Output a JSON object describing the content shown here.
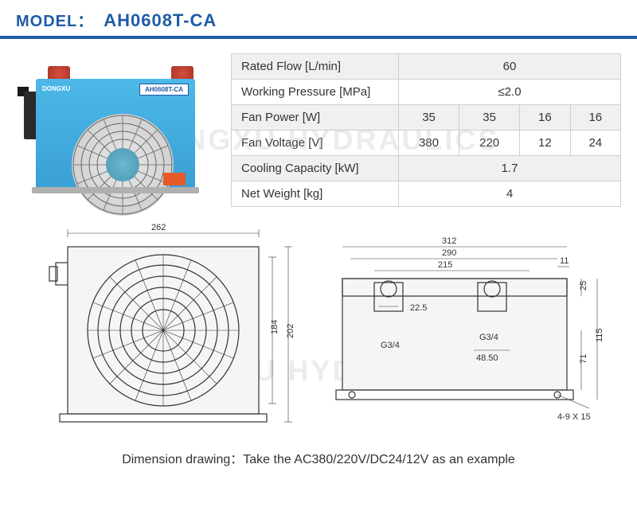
{
  "header": {
    "label": "MODEL：",
    "model": "AH0608T-CA"
  },
  "product": {
    "label": "AH0608T-CA",
    "brand": "DONGXU"
  },
  "specs": {
    "rows": [
      {
        "label": "Rated Flow [L/min]",
        "values": [
          "60"
        ],
        "colspan": 4
      },
      {
        "label": "Working Pressure [MPa]",
        "values": [
          "≤2.0"
        ],
        "colspan": 4
      },
      {
        "label": "Fan Power [W]",
        "values": [
          "35",
          "35",
          "16",
          "16"
        ],
        "colspan": 1
      },
      {
        "label": "Fan Voltage [V]",
        "values": [
          "380",
          "220",
          "12",
          "24"
        ],
        "colspan": 1
      },
      {
        "label": "Cooling Capacity [kW]",
        "values": [
          "1.7"
        ],
        "colspan": 4
      },
      {
        "label": "Net Weight [kg]",
        "values": [
          "4"
        ],
        "colspan": 4
      }
    ]
  },
  "drawings": {
    "front": {
      "width": "262",
      "height_inner": "184",
      "height_outer": "202"
    },
    "side": {
      "w1": "312",
      "w2": "290",
      "w3": "215",
      "edge": "11",
      "h_port": "22.5",
      "h_top": "25",
      "h_body": "115",
      "h_inner": "71",
      "port_label": "G3/4",
      "port_spacing": "48.50",
      "holes": "4-9 X 15"
    }
  },
  "footer": "Dimension drawing：Take the AC380/220V/DC24/12V as an example",
  "watermark": "DONGXU HYDRAULICS",
  "colors": {
    "brand_blue": "#1e5ba8",
    "product_blue": "#4db8e8",
    "cap_red": "#d94c3a",
    "border": "#d0d0d0"
  }
}
